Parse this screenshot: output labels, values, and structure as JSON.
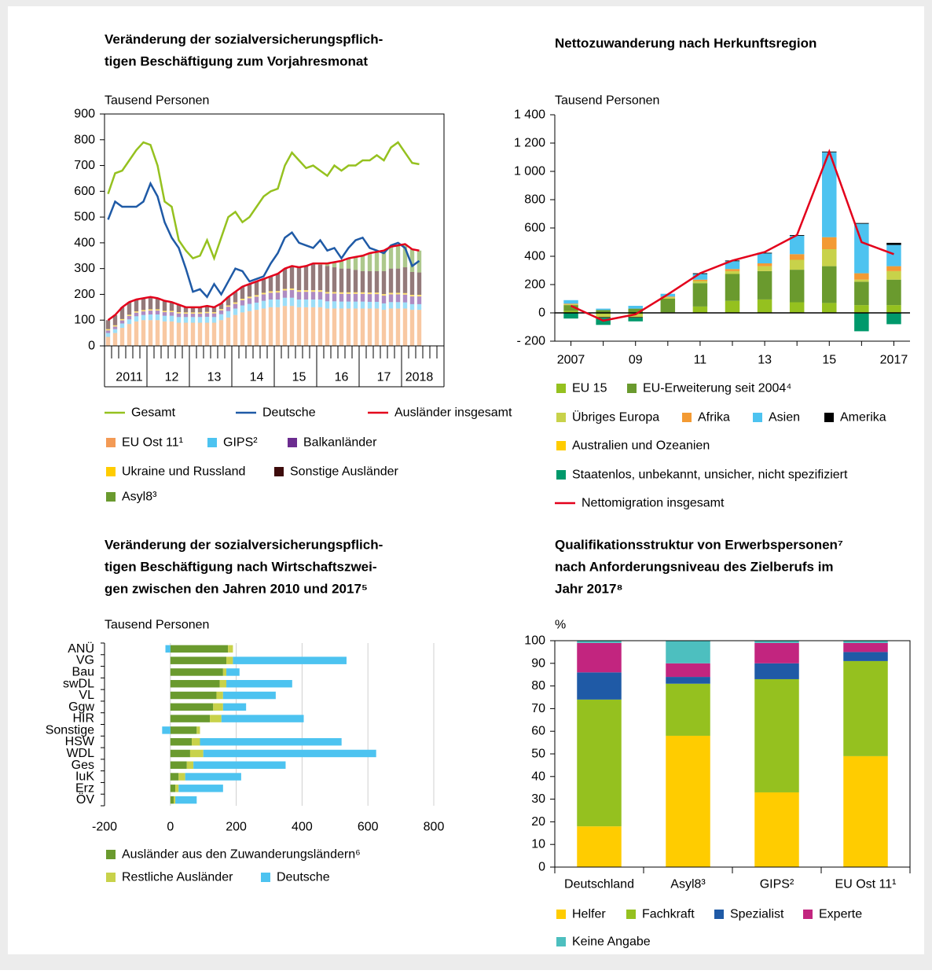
{
  "chart_data": [
    {
      "type": "combo",
      "stacked": true,
      "title": [
        "Veränderung der sozialversicherungspflich-",
        "tigen Beschäftigung zum Vorjahresmonat"
      ],
      "unit_label": "Tausend Personen",
      "categories": [
        null,
        null,
        null,
        "2011",
        null,
        null,
        null,
        null,
        null,
        "12",
        null,
        null,
        null,
        null,
        null,
        "13",
        null,
        null,
        null,
        null,
        null,
        "14",
        null,
        null,
        null,
        null,
        null,
        "15",
        null,
        null,
        null,
        null,
        null,
        "16",
        null,
        null,
        null,
        null,
        null,
        "17",
        null,
        null,
        null,
        null,
        "2018"
      ],
      "ylim": [
        0,
        900
      ],
      "yticks": [
        0,
        100,
        200,
        300,
        400,
        500,
        600,
        700,
        800,
        900
      ],
      "series": [
        {
          "name": "Gesamt",
          "type": "line",
          "color": "#95c11f",
          "values": [
            590,
            670,
            680,
            720,
            760,
            790,
            780,
            700,
            560,
            540,
            410,
            370,
            340,
            350,
            410,
            340,
            420,
            500,
            520,
            480,
            500,
            540,
            580,
            600,
            610,
            700,
            750,
            720,
            690,
            700,
            680,
            660,
            700,
            680,
            700,
            700,
            720,
            720,
            740,
            720,
            770,
            790,
            750,
            710,
            705
          ]
        },
        {
          "name": "Deutsche",
          "type": "line",
          "color": "#1f5aa6",
          "values": [
            490,
            560,
            540,
            540,
            540,
            560,
            630,
            580,
            480,
            420,
            380,
            300,
            210,
            220,
            190,
            240,
            200,
            250,
            300,
            290,
            250,
            260,
            270,
            320,
            360,
            420,
            440,
            400,
            390,
            380,
            410,
            370,
            380,
            340,
            380,
            410,
            420,
            380,
            370,
            360,
            390,
            400,
            380,
            310,
            330
          ]
        },
        {
          "name": "Ausländer insgesamt",
          "type": "line",
          "color": "#e3001b",
          "values": [
            100,
            120,
            150,
            170,
            180,
            185,
            190,
            185,
            175,
            170,
            160,
            150,
            150,
            150,
            155,
            150,
            165,
            190,
            210,
            230,
            240,
            250,
            260,
            270,
            280,
            300,
            310,
            305,
            310,
            320,
            320,
            320,
            325,
            330,
            340,
            345,
            350,
            360,
            365,
            370,
            385,
            390,
            395,
            375,
            370
          ]
        },
        {
          "name": "EU Ost 11¹",
          "type": "bar",
          "color": "#f39a55",
          "values": [
            35,
            50,
            70,
            85,
            95,
            100,
            100,
            100,
            95,
            95,
            90,
            90,
            90,
            90,
            90,
            90,
            100,
            110,
            120,
            130,
            135,
            140,
            145,
            150,
            150,
            155,
            155,
            150,
            150,
            150,
            150,
            145,
            145,
            145,
            145,
            145,
            145,
            145,
            145,
            140,
            145,
            145,
            145,
            140,
            140
          ]
        },
        {
          "name": "GIPS²",
          "type": "bar",
          "color": "#4dc3f0",
          "values": [
            15,
            15,
            17,
            18,
            20,
            20,
            22,
            22,
            22,
            22,
            22,
            22,
            22,
            22,
            23,
            22,
            23,
            25,
            25,
            27,
            28,
            28,
            30,
            30,
            30,
            32,
            32,
            30,
            30,
            30,
            30,
            28,
            28,
            27,
            27,
            27,
            27,
            26,
            26,
            25,
            25,
            25,
            24,
            22,
            22
          ]
        },
        {
          "name": "Balkanländer",
          "type": "bar",
          "color": "#6b2c8f",
          "values": [
            10,
            10,
            12,
            13,
            14,
            14,
            15,
            15,
            14,
            14,
            14,
            13,
            13,
            13,
            14,
            14,
            15,
            17,
            18,
            20,
            22,
            23,
            25,
            26,
            27,
            28,
            30,
            30,
            30,
            30,
            30,
            30,
            30,
            30,
            30,
            30,
            30,
            30,
            30,
            30,
            30,
            30,
            30,
            30,
            30
          ]
        },
        {
          "name": "Ukraine und Russland",
          "type": "bar",
          "color": "#ffcc00",
          "values": [
            5,
            5,
            5,
            5,
            5,
            5,
            5,
            5,
            5,
            5,
            5,
            5,
            5,
            5,
            5,
            5,
            5,
            5,
            6,
            6,
            6,
            6,
            6,
            6,
            6,
            6,
            6,
            6,
            6,
            6,
            6,
            6,
            6,
            6,
            6,
            6,
            6,
            6,
            6,
            6,
            6,
            6,
            6,
            6,
            6
          ]
        },
        {
          "name": "Sonstige Ausländer",
          "type": "bar",
          "color": "#3d0c0c",
          "values": [
            35,
            40,
            46,
            49,
            46,
            46,
            48,
            43,
            39,
            34,
            29,
            20,
            20,
            20,
            23,
            19,
            22,
            33,
            41,
            47,
            49,
            53,
            54,
            58,
            67,
            79,
            87,
            89,
            94,
            104,
            99,
            101,
            96,
            92,
            92,
            87,
            82,
            83,
            83,
            89,
            94,
            94,
            100,
            89,
            87
          ]
        },
        {
          "name": "Asyl8³",
          "type": "bar",
          "color": "#6a9a2e",
          "values": [
            0,
            0,
            0,
            0,
            0,
            0,
            0,
            0,
            0,
            0,
            0,
            0,
            0,
            0,
            0,
            0,
            0,
            0,
            0,
            0,
            0,
            0,
            0,
            0,
            0,
            0,
            0,
            0,
            0,
            0,
            5,
            10,
            20,
            30,
            40,
            50,
            60,
            70,
            75,
            80,
            85,
            90,
            90,
            88,
            85
          ]
        }
      ]
    },
    {
      "type": "combo",
      "stacked": true,
      "title": [
        "Nettozuwanderung nach Herkunftsregion"
      ],
      "unit_label": "Tausend Personen",
      "categories": [
        "2007",
        null,
        "09",
        null,
        "11",
        null,
        "13",
        null,
        "15",
        null,
        "2017"
      ],
      "ylim": [
        -200,
        1400
      ],
      "yticks": [
        {
          "value": -200,
          "label": "- 200"
        },
        0,
        200,
        400,
        600,
        800,
        {
          "value": 1000,
          "label": "1 000"
        },
        {
          "value": 1200,
          "label": "1 200"
        },
        {
          "value": 1400,
          "label": "1 400"
        }
      ],
      "series": [
        {
          "name": "EU 15",
          "type": "bar",
          "color": "#95c11f",
          "values": [
            15,
            -10,
            -10,
            5,
            45,
            85,
            95,
            75,
            70,
            55,
            55
          ]
        },
        {
          "name": "EU-Erweiterung seit 2004⁴",
          "type": "bar",
          "color": "#6a9a2e",
          "values": [
            40,
            20,
            30,
            95,
            165,
            190,
            200,
            230,
            260,
            165,
            180
          ]
        },
        {
          "name": "Übriges Europa",
          "type": "bar",
          "color": "#c8d24a",
          "values": [
            5,
            -20,
            -20,
            10,
            15,
            20,
            35,
            70,
            120,
            15,
            60
          ]
        },
        {
          "name": "Afrika",
          "type": "bar",
          "color": "#f39a33",
          "values": [
            5,
            0,
            0,
            5,
            10,
            15,
            20,
            40,
            85,
            45,
            35
          ]
        },
        {
          "name": "Asien",
          "type": "bar",
          "color": "#4dc3f0",
          "values": [
            25,
            10,
            20,
            20,
            40,
            55,
            70,
            130,
            600,
            350,
            150
          ]
        },
        {
          "name": "Amerika",
          "type": "bar",
          "color": "#000000",
          "values": [
            0,
            -5,
            -5,
            0,
            5,
            5,
            5,
            5,
            5,
            5,
            15
          ]
        },
        {
          "name": "Australien und Ozeanien",
          "type": "bar",
          "color": "#ffcc00",
          "values": [
            0,
            0,
            0,
            0,
            0,
            0,
            0,
            0,
            0,
            0,
            0
          ]
        },
        {
          "name": "Staatenlos, unbekannt, unsicher, nicht spezifiziert",
          "type": "bar",
          "color": "#00996b",
          "values": [
            -40,
            -50,
            -25,
            0,
            0,
            0,
            0,
            0,
            0,
            -130,
            -80
          ]
        },
        {
          "name": "Nettomigration insgesamt",
          "type": "line",
          "color": "#e3001b",
          "values": [
            50,
            -55,
            -10,
            130,
            280,
            370,
            430,
            550,
            1140,
            500,
            415
          ]
        }
      ]
    },
    {
      "type": "bar",
      "orientation": "horizontal",
      "stacked": true,
      "title": [
        "Veränderung der sozialversicherungspflich-",
        "tigen Beschäftigung nach Wirtschaftszwei-",
        "gen zwischen den Jahren 2010 und 2017⁵"
      ],
      "unit_label": "Tausend Personen",
      "categories": [
        "ANÜ",
        "VG",
        "Bau",
        "swDL",
        "VL",
        "Ggw",
        "HIR",
        "Sonstige",
        "HSW",
        "WDL",
        "Ges",
        "IuK",
        "Erz",
        "ÖV"
      ],
      "xlim": [
        -200,
        800
      ],
      "xticks": [
        -200,
        0,
        200,
        400,
        600,
        800
      ],
      "grid": true,
      "series": [
        {
          "name": "Ausländer aus den Zuwanderungsländern⁶",
          "color": "#6a9a2e",
          "values": [
            175,
            170,
            160,
            150,
            140,
            130,
            120,
            80,
            65,
            60,
            50,
            25,
            15,
            10
          ]
        },
        {
          "name": "Restliche Ausländer",
          "color": "#c8d24a",
          "values": [
            15,
            20,
            10,
            20,
            20,
            30,
            35,
            10,
            25,
            40,
            20,
            20,
            10,
            5
          ]
        },
        {
          "name": "Deutsche",
          "color": "#4dc3f0",
          "values": [
            -15,
            345,
            40,
            200,
            160,
            70,
            250,
            -25,
            430,
            525,
            280,
            170,
            135,
            65
          ]
        }
      ]
    },
    {
      "type": "bar",
      "stacked": true,
      "title": [
        "Qualifikationsstruktur von Erwerbspersonen⁷",
        "nach Anforderungsniveau des Zielberufs im",
        "Jahr 2017⁸"
      ],
      "unit_label": "%",
      "categories": [
        "Deutschland",
        "Asyl8³",
        "GIPS²",
        "EU Ost 11¹"
      ],
      "ylim": [
        0,
        100
      ],
      "yticks": [
        0,
        10,
        20,
        30,
        40,
        50,
        60,
        70,
        80,
        90,
        100
      ],
      "series": [
        {
          "name": "Helfer",
          "color": "#ffcc00",
          "values": [
            18,
            58,
            33,
            49
          ]
        },
        {
          "name": "Fachkraft",
          "color": "#95c11f",
          "values": [
            56,
            23,
            50,
            42
          ]
        },
        {
          "name": "Spezialist",
          "color": "#1f5aa6",
          "values": [
            12,
            3,
            7,
            4
          ]
        },
        {
          "name": "Experte",
          "color": "#c2257f",
          "values": [
            13,
            6,
            9,
            4
          ]
        },
        {
          "name": "Keine Angabe",
          "color": "#4dbfbf",
          "values": [
            1,
            10,
            1,
            1
          ]
        }
      ]
    }
  ]
}
